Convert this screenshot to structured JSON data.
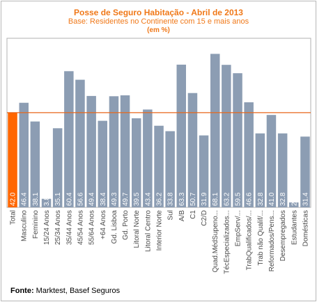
{
  "chart_data": {
    "type": "bar",
    "title": "Posse de Seguro Habitação - Abril de 2013",
    "subtitle": "Base: Residentes no Continente com 15 e mais anos",
    "unit_note": "(em %)",
    "categories": [
      "Total",
      "Masculino",
      "Feminino",
      "15/24 Anos",
      "25/34 Anos",
      "35/44 Anos",
      "45/54 Anos",
      "55/64 Anos",
      "+64 Anos",
      "Gd. Lisboa",
      "Gd. Porto",
      "Litoral Norte",
      "Litoral Centro",
      "Interior Norte",
      "Sul",
      "A/B",
      "C1",
      "C2/D",
      "Quad.MédSupeno...",
      "TécEspecializados...",
      "EmpServ/...",
      "TrabQualificados/...",
      "Trab não Qualif/...",
      "Reformados/Pens...",
      "Desempregados",
      "Estudantes",
      "Domésticas"
    ],
    "values": [
      42.0,
      46.4,
      38.1,
      3.8,
      35.1,
      60.4,
      56.6,
      49.4,
      38.4,
      49.3,
      49.7,
      39.5,
      43.4,
      36.2,
      33.8,
      63.3,
      50.7,
      31.9,
      68.1,
      63.2,
      59.5,
      46.6,
      32.8,
      41.0,
      32.8,
      2.2,
      31.4
    ],
    "value_labels": [
      "42.0",
      "46.4",
      "38.1",
      "3.8",
      "35.1",
      "60.4",
      "56.6",
      "49.4",
      "38.4",
      "49.3",
      "49.7",
      "39.5",
      "43.4",
      "36.2",
      "33.8",
      "63.3",
      "50.7",
      "31.9",
      "68.1",
      "63.2",
      "59.5",
      "46.6",
      "32.8",
      "41.0",
      "32.8",
      "2.2",
      "31.4"
    ],
    "highlight_index": 0,
    "reference_line": 42.0,
    "ylim": [
      0,
      75
    ],
    "colors": {
      "bar": "#8c9db3",
      "highlight": "#ff6600",
      "reference": "#e8661a",
      "plot_bg": "#ffffff",
      "border": "#b0b0b0",
      "label_text": "#ffffff",
      "tick_text": "#4a4a4a"
    }
  },
  "source": {
    "label": "Fonte:",
    "text": "Marktest, Basef Seguros"
  }
}
